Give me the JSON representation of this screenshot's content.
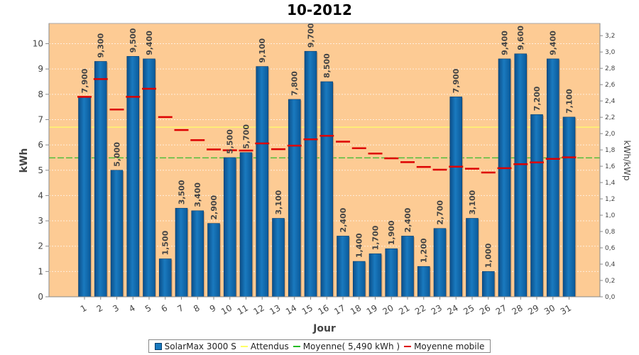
{
  "chart_data": {
    "type": "bar",
    "title": "10-2012",
    "xlabel": "Jour",
    "ylabel": "kWh",
    "y2label": "kWh/kWp",
    "ylim": [
      0,
      10.8
    ],
    "y2lim": [
      0,
      3.35
    ],
    "yticks": [
      "0",
      "1",
      "2",
      "3",
      "4",
      "5",
      "6",
      "7",
      "8",
      "9",
      "10"
    ],
    "y2ticks": [
      "0,0",
      "0,2",
      "0,4",
      "0,6",
      "0,8",
      "1,0",
      "1,2",
      "1,4",
      "1,6",
      "1,8",
      "2,0",
      "2,2",
      "2,4",
      "2,6",
      "2,8",
      "3,0",
      "3,2"
    ],
    "categories": [
      "1",
      "2",
      "3",
      "4",
      "5",
      "6",
      "7",
      "8",
      "9",
      "10",
      "11",
      "12",
      "13",
      "14",
      "15",
      "16",
      "17",
      "18",
      "19",
      "20",
      "21",
      "22",
      "23",
      "24",
      "25",
      "26",
      "27",
      "28",
      "29",
      "30",
      "31"
    ],
    "series": [
      {
        "name": "SolarMax 3000 S",
        "type": "bar",
        "color": "#1a7abf",
        "values": [
          7.9,
          9.3,
          5.0,
          9.5,
          9.4,
          1.5,
          3.5,
          3.4,
          2.9,
          5.5,
          5.7,
          9.1,
          3.1,
          7.8,
          9.7,
          8.5,
          2.4,
          1.4,
          1.7,
          1.9,
          2.4,
          1.2,
          2.7,
          7.9,
          3.1,
          1.0,
          9.4,
          9.6,
          7.2,
          9.4,
          7.1
        ],
        "labels": [
          "7,900",
          "9,300",
          "5,000",
          "9,500",
          "9,400",
          "1,500",
          "3,500",
          "3,400",
          "2,900",
          "5,500",
          "5,700",
          "9,100",
          "3,100",
          "7,800",
          "9,700",
          "8,500",
          "2,400",
          "1,400",
          "1,700",
          "1,900",
          "2,400",
          "1,200",
          "2,700",
          "7,900",
          "3,100",
          "1,000",
          "9,400",
          "9,600",
          "7,200",
          "9,400",
          "7,100"
        ]
      },
      {
        "name": "Attendus",
        "type": "line",
        "color": "#ffff66",
        "value": 6.7
      },
      {
        "name": "Moyenne( 5,490 kWh )",
        "type": "line",
        "color": "#22bb22",
        "value": 5.49
      },
      {
        "name": "Moyenne mobile",
        "type": "step",
        "color": "#dd0000",
        "values": [
          7.9,
          8.6,
          7.4,
          7.9,
          8.22,
          7.1,
          6.59,
          6.19,
          5.82,
          5.79,
          5.78,
          6.06,
          5.83,
          5.97,
          6.22,
          6.36,
          6.13,
          5.87,
          5.66,
          5.47,
          5.32,
          5.13,
          5.02,
          5.14,
          5.06,
          4.91,
          5.08,
          5.24,
          5.31,
          5.45,
          5.51
        ]
      }
    ],
    "grid": true,
    "legend_position": "bottom"
  },
  "legend": {
    "items": [
      {
        "label": "SolarMax 3000 S"
      },
      {
        "label": "Attendus"
      },
      {
        "label": "Moyenne( 5,490 kWh )"
      },
      {
        "label": "Moyenne mobile"
      }
    ]
  }
}
